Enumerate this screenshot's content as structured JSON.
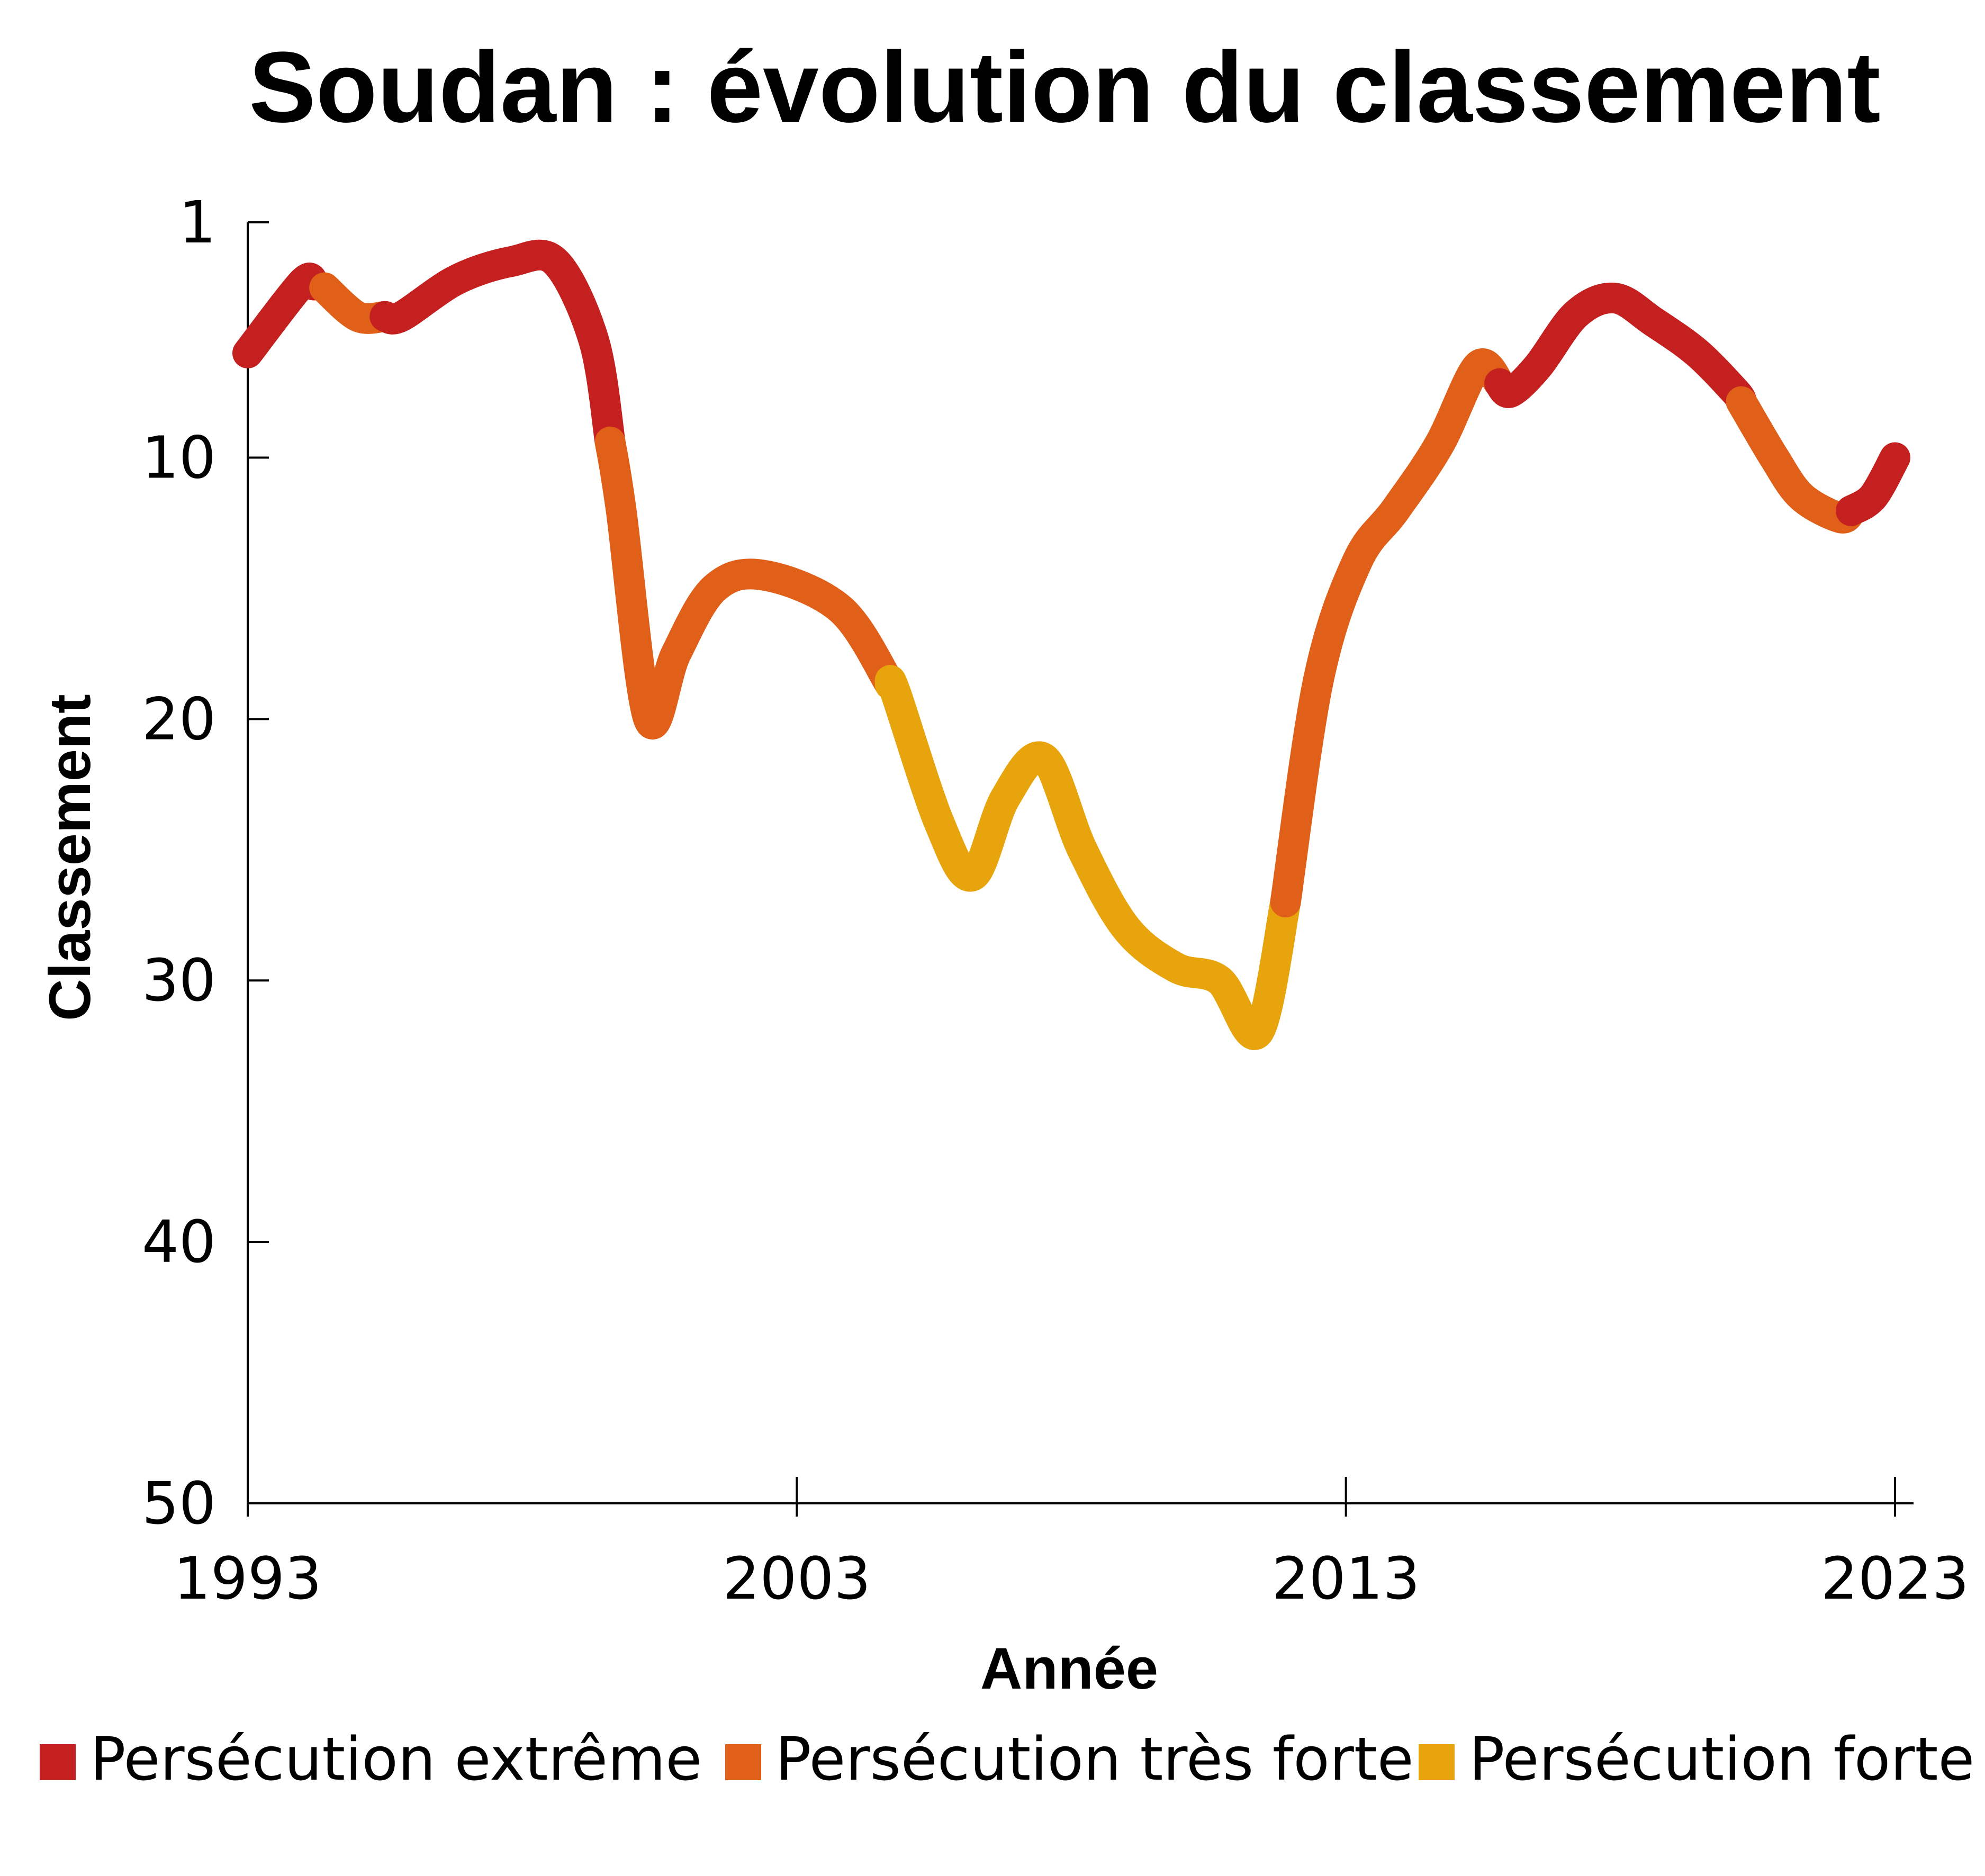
{
  "chart_data": {
    "type": "line",
    "title": "Soudan : évolution du classement",
    "xlabel": "Année",
    "ylabel": "Classement",
    "xlim": [
      1993,
      2023
    ],
    "ylim": [
      1,
      50
    ],
    "y_inverted": true,
    "x_ticks": [
      "1993",
      "2003",
      "2013",
      "2023"
    ],
    "y_ticks": [
      "1",
      "10",
      "20",
      "30",
      "40",
      "50"
    ],
    "grid": false,
    "legend_position": "bottom",
    "categories_legend": [
      {
        "name": "Persécution extrême",
        "color": "#c4201f"
      },
      {
        "name": "Persécution très forte",
        "color": "#e0601a"
      },
      {
        "name": "Persécution forte",
        "color": "#e8a40c"
      }
    ],
    "series": [
      {
        "x": [
          1993.0,
          1994.0,
          1994.4,
          1995.0,
          1995.8,
          1996.8,
          1997.8,
          1998.6,
          1999.3,
          1999.8,
          2000.3,
          2000.8,
          2001.5,
          2002.4,
          2003.8,
          2004.8,
          2005.6,
          2006.2,
          2006.8,
          2007.5,
          2008.2,
          2009.0,
          2009.9,
          2010.7,
          2011.4,
          2011.9,
          2012.5,
          2013.2,
          2013.9,
          2014.7,
          2015.4,
          2016.0,
          2016.5,
          2017.2,
          2017.9,
          2018.6,
          2019.4,
          2020.1,
          2020.8,
          2021.3,
          2022.0,
          2022.6,
          2023.0
        ],
        "y": [
          6.0,
          3.3,
          3.5,
          4.6,
          4.6,
          3.2,
          2.5,
          2.5,
          5.5,
          12.0,
          20.0,
          17.5,
          15.0,
          14.5,
          15.8,
          19.0,
          24.0,
          26.0,
          23.0,
          21.5,
          25.0,
          28.0,
          29.5,
          30.0,
          32.0,
          27.0,
          18.5,
          14.0,
          12.0,
          9.5,
          6.5,
          7.5,
          6.5,
          4.5,
          3.9,
          4.8,
          6.0,
          7.5,
          10.0,
          11.5,
          12.3,
          11.5,
          10.0
        ],
        "segments": [
          {
            "category": "Persécution extrême",
            "x_from": 1993.0,
            "x_to": 1994.2
          },
          {
            "category": "Persécution très forte",
            "x_from": 1994.4,
            "x_to": 1995.5
          },
          {
            "category": "Persécution extrême",
            "x_from": 1995.5,
            "x_to": 1999.6
          },
          {
            "category": "Persécution très forte",
            "x_from": 1999.6,
            "x_to": 2004.7
          },
          {
            "category": "Persécution forte",
            "x_from": 2004.7,
            "x_to": 2011.9
          },
          {
            "category": "Persécution très forte",
            "x_from": 2011.9,
            "x_to": 2015.8
          },
          {
            "category": "Persécution extrême",
            "x_from": 2015.8,
            "x_to": 2020.2
          },
          {
            "category": "Persécution très forte",
            "x_from": 2020.2,
            "x_to": 2022.2
          },
          {
            "category": "Persécution extrême",
            "x_from": 2022.2,
            "x_to": 2023.0
          }
        ]
      }
    ]
  }
}
